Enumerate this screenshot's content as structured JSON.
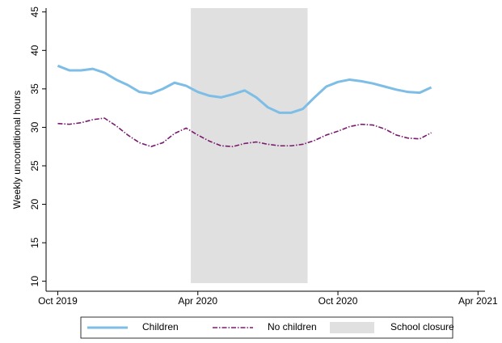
{
  "chart_data": {
    "type": "line",
    "ylabel": "Weekly unconditional hours",
    "x": [
      0,
      0.5,
      1,
      1.5,
      2,
      2.5,
      3,
      3.5,
      4,
      4.5,
      5,
      5.5,
      6,
      6.5,
      7,
      7.5,
      8,
      8.5,
      9,
      9.5,
      10,
      10.5,
      11,
      11.5,
      12,
      12.5,
      13,
      13.5,
      14,
      14.5,
      15,
      15.5,
      16
    ],
    "series": [
      {
        "name": "Children",
        "color": "#7dbde6",
        "style": "solid",
        "values": [
          38.0,
          37.4,
          37.4,
          37.6,
          37.1,
          36.2,
          35.5,
          34.6,
          34.4,
          35.0,
          35.8,
          35.4,
          34.6,
          34.1,
          33.9,
          34.3,
          34.8,
          33.9,
          32.6,
          31.9,
          31.9,
          32.4,
          33.9,
          35.3,
          35.9,
          36.2,
          36.0,
          35.7,
          35.3,
          34.9,
          34.6,
          34.5,
          35.2
        ]
      },
      {
        "name": "No children",
        "color": "#7a1a6e",
        "style": "dashdot",
        "values": [
          30.5,
          30.4,
          30.6,
          31.0,
          31.2,
          30.2,
          29.0,
          28.0,
          27.5,
          28.0,
          29.2,
          29.9,
          29.0,
          28.2,
          27.6,
          27.5,
          27.9,
          28.1,
          27.8,
          27.6,
          27.6,
          27.8,
          28.3,
          29.0,
          29.5,
          30.1,
          30.4,
          30.3,
          29.8,
          29.0,
          28.6,
          28.5,
          29.3
        ]
      }
    ],
    "shade": {
      "name": "School closure",
      "x": [
        5.7,
        10.7
      ],
      "color": "#e0e0e0"
    },
    "xlim": [
      -0.5,
      18.3
    ],
    "xticks": [
      {
        "value": 0,
        "label": "Oct 2019"
      },
      {
        "value": 6,
        "label": "Apr 2020"
      },
      {
        "value": 12,
        "label": "Oct 2020"
      },
      {
        "value": 18,
        "label": "Apr 2021"
      }
    ],
    "ylim": [
      8.7,
      45.5
    ],
    "yticks": [
      10,
      15,
      20,
      25,
      30,
      35,
      40,
      45
    ],
    "legend": "bottom"
  }
}
